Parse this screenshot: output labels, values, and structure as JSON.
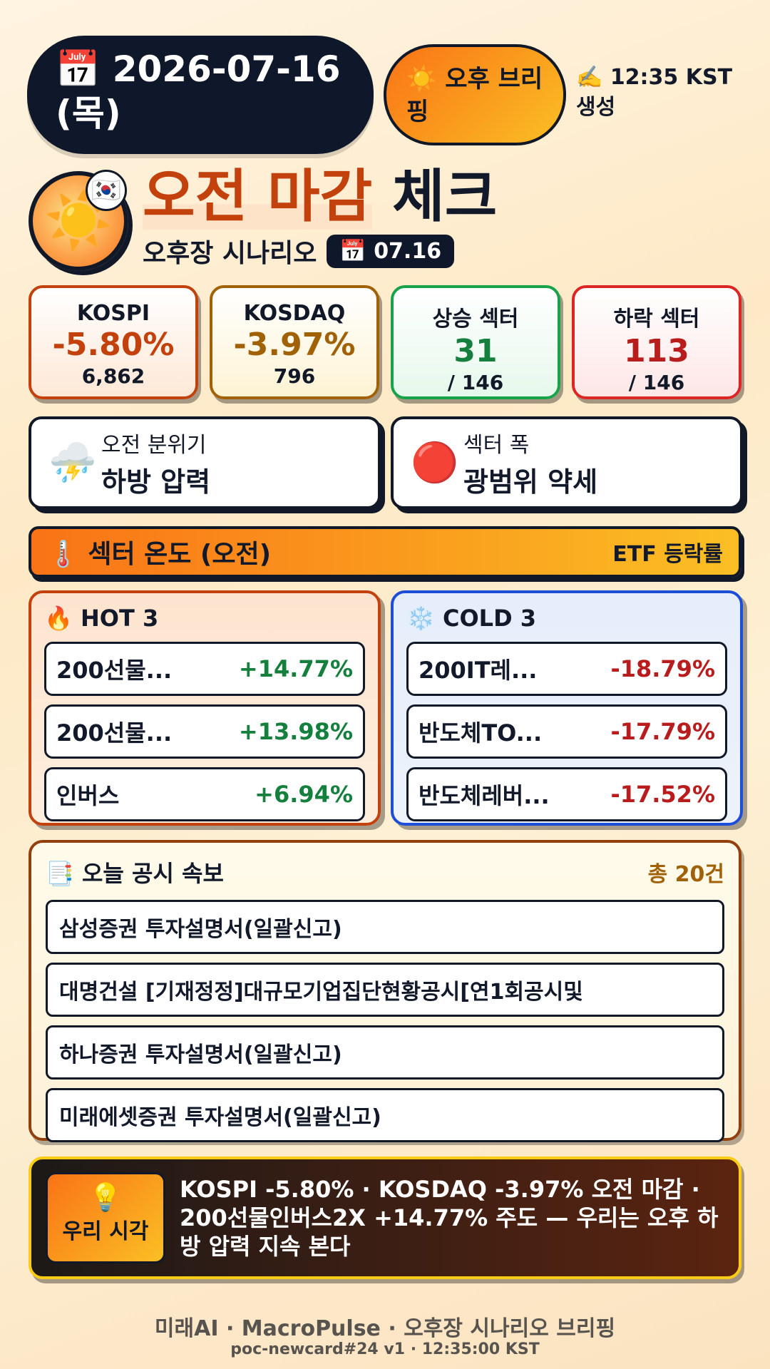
{
  "header": {
    "date_icon": "📅",
    "date_text": "2026-07-16 (목)",
    "session_icon": "☀️",
    "session_label": "오후 브리핑",
    "generated_icon": "✍️",
    "generated_label": "12:35 KST 생성"
  },
  "hero": {
    "sun_icon": "☀️",
    "flag_icon": "🇰🇷",
    "headline_highlight": "오전 마감",
    "headline_rest": "체크",
    "subtitle": "오후장 시나리오",
    "date_chip_icon": "📅",
    "date_chip": "07.16"
  },
  "stats": [
    {
      "label": "KOSPI",
      "value": "-5.80%",
      "sub": "6,862",
      "color": "#c2410c"
    },
    {
      "label": "KOSDAQ",
      "value": "-3.97%",
      "sub": "796",
      "color": "#a16207"
    },
    {
      "label": "상승 섹터",
      "value": "31",
      "sub": "/ 146",
      "color": "#15803d"
    },
    {
      "label": "하락 섹터",
      "value": "113",
      "sub": "/ 146",
      "color": "#b91c1c"
    }
  ],
  "mood": [
    {
      "icon": "⛈️",
      "label": "오전 분위기",
      "value": "하방 압력"
    },
    {
      "icon": "🔴",
      "label": "섹터 폭",
      "value": "광범위 약세"
    }
  ],
  "temperature": {
    "icon": "🌡️",
    "title": "섹터 온도 (오전)",
    "right": "ETF 등락률"
  },
  "hot": {
    "icon": "🔥",
    "title": "HOT 3",
    "rows": [
      {
        "name": "200선물...",
        "pct": "+14.77%"
      },
      {
        "name": "200선물...",
        "pct": "+13.98%"
      },
      {
        "name": "인버스",
        "pct": "+6.94%"
      }
    ]
  },
  "cold": {
    "icon": "❄️",
    "title": "COLD 3",
    "rows": [
      {
        "name": "200IT레...",
        "pct": "-18.79%"
      },
      {
        "name": "반도체TO...",
        "pct": "-17.79%"
      },
      {
        "name": "반도체레버...",
        "pct": "-17.52%"
      }
    ]
  },
  "disclosures": {
    "icon": "📑",
    "title": "오늘 공시 속보",
    "count": "총 20건",
    "items": [
      "삼성증권 투자설명서(일괄신고)",
      "대명건설 [기재정정]대규모기업집단현황공시[연1회공시및",
      "하나증권 투자설명서(일괄신고)",
      "미래에셋증권 투자설명서(일괄신고)"
    ]
  },
  "view": {
    "icon": "💡",
    "label": "우리 시각",
    "text": "KOSPI -5.80% · KOSDAQ -3.97% 오전 마감 · 200선물인버스2X +14.77% 주도 — 우리는 오후 하방 압력 지속 본다"
  },
  "footer": {
    "line1": "미래AI · MacroPulse · 오후장 시나리오 브리핑",
    "line2": "poc-newcard#24 v1 · 12:35:00 KST"
  },
  "colors": {
    "kospi_bg": "#fde8d6",
    "kospi_border": "#c2410c",
    "kosdaq_bg": "#fdf3d4",
    "kosdaq_border": "#a16207",
    "up_bg": "#e6f8ec",
    "up_border": "#16a34a",
    "down_bg": "#fde6e6",
    "down_border": "#dc2626",
    "hot_pct": "#15803d",
    "cold_pct": "#b91c1c"
  }
}
